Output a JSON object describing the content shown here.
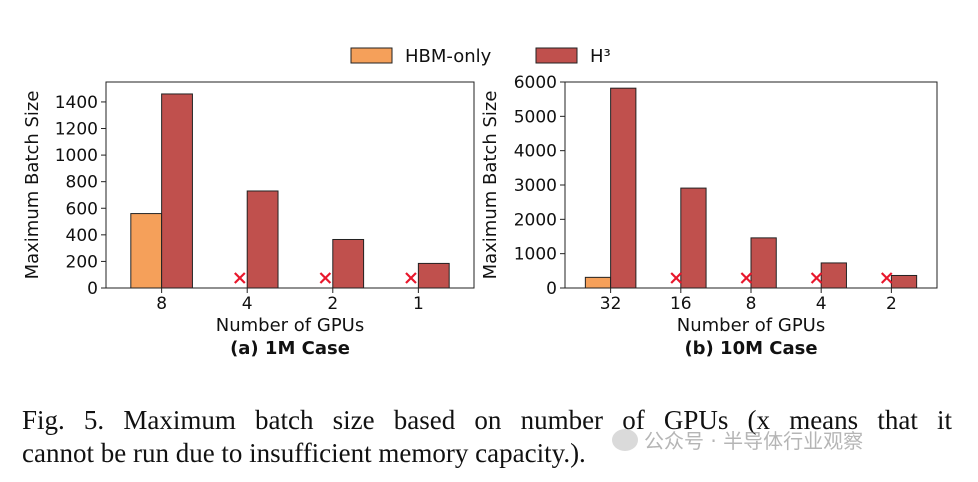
{
  "colors": {
    "hbm_only": "#F5A05A",
    "h3": "#C0504D",
    "marker": "#E8172C"
  },
  "legend": {
    "items": [
      {
        "label": "HBM-only",
        "color_key": "hbm_only"
      },
      {
        "label": "H³",
        "color_key": "h3"
      }
    ]
  },
  "chart_data": [
    {
      "type": "bar",
      "title": "(a) 1M Case",
      "xlabel": "Number of GPUs",
      "ylabel": "Maximum Batch Size",
      "categories": [
        "8",
        "4",
        "2",
        "1"
      ],
      "ylim": [
        0,
        1550
      ],
      "yticks": [
        0,
        200,
        400,
        600,
        800,
        1000,
        1200,
        1400
      ],
      "series": [
        {
          "name": "HBM-only",
          "values": [
            560,
            0,
            0,
            0
          ]
        },
        {
          "name": "H³",
          "values": [
            1460,
            730,
            365,
            185
          ]
        }
      ],
      "infeasible_marker": "x",
      "infeasible": [
        false,
        true,
        true,
        true
      ]
    },
    {
      "type": "bar",
      "title": "(b) 10M Case",
      "xlabel": "Number of GPUs",
      "ylabel": "Maximum Batch Size",
      "categories": [
        "32",
        "16",
        "8",
        "4",
        "2"
      ],
      "ylim": [
        0,
        6000
      ],
      "yticks": [
        0,
        1000,
        2000,
        3000,
        4000,
        5000,
        6000
      ],
      "series": [
        {
          "name": "HBM-only",
          "values": [
            310,
            0,
            0,
            0,
            0
          ]
        },
        {
          "name": "H³",
          "values": [
            5820,
            2910,
            1460,
            730,
            365
          ]
        }
      ],
      "infeasible_marker": "x",
      "infeasible": [
        false,
        true,
        true,
        true,
        true
      ]
    }
  ],
  "caption": {
    "line1": "Fig. 5.  Maximum batch size based on number of GPUs (x means that it",
    "line2": "cannot be run due to insufficient memory capacity.)."
  },
  "watermark": {
    "text": "公众号 · 半导体行业观察"
  }
}
